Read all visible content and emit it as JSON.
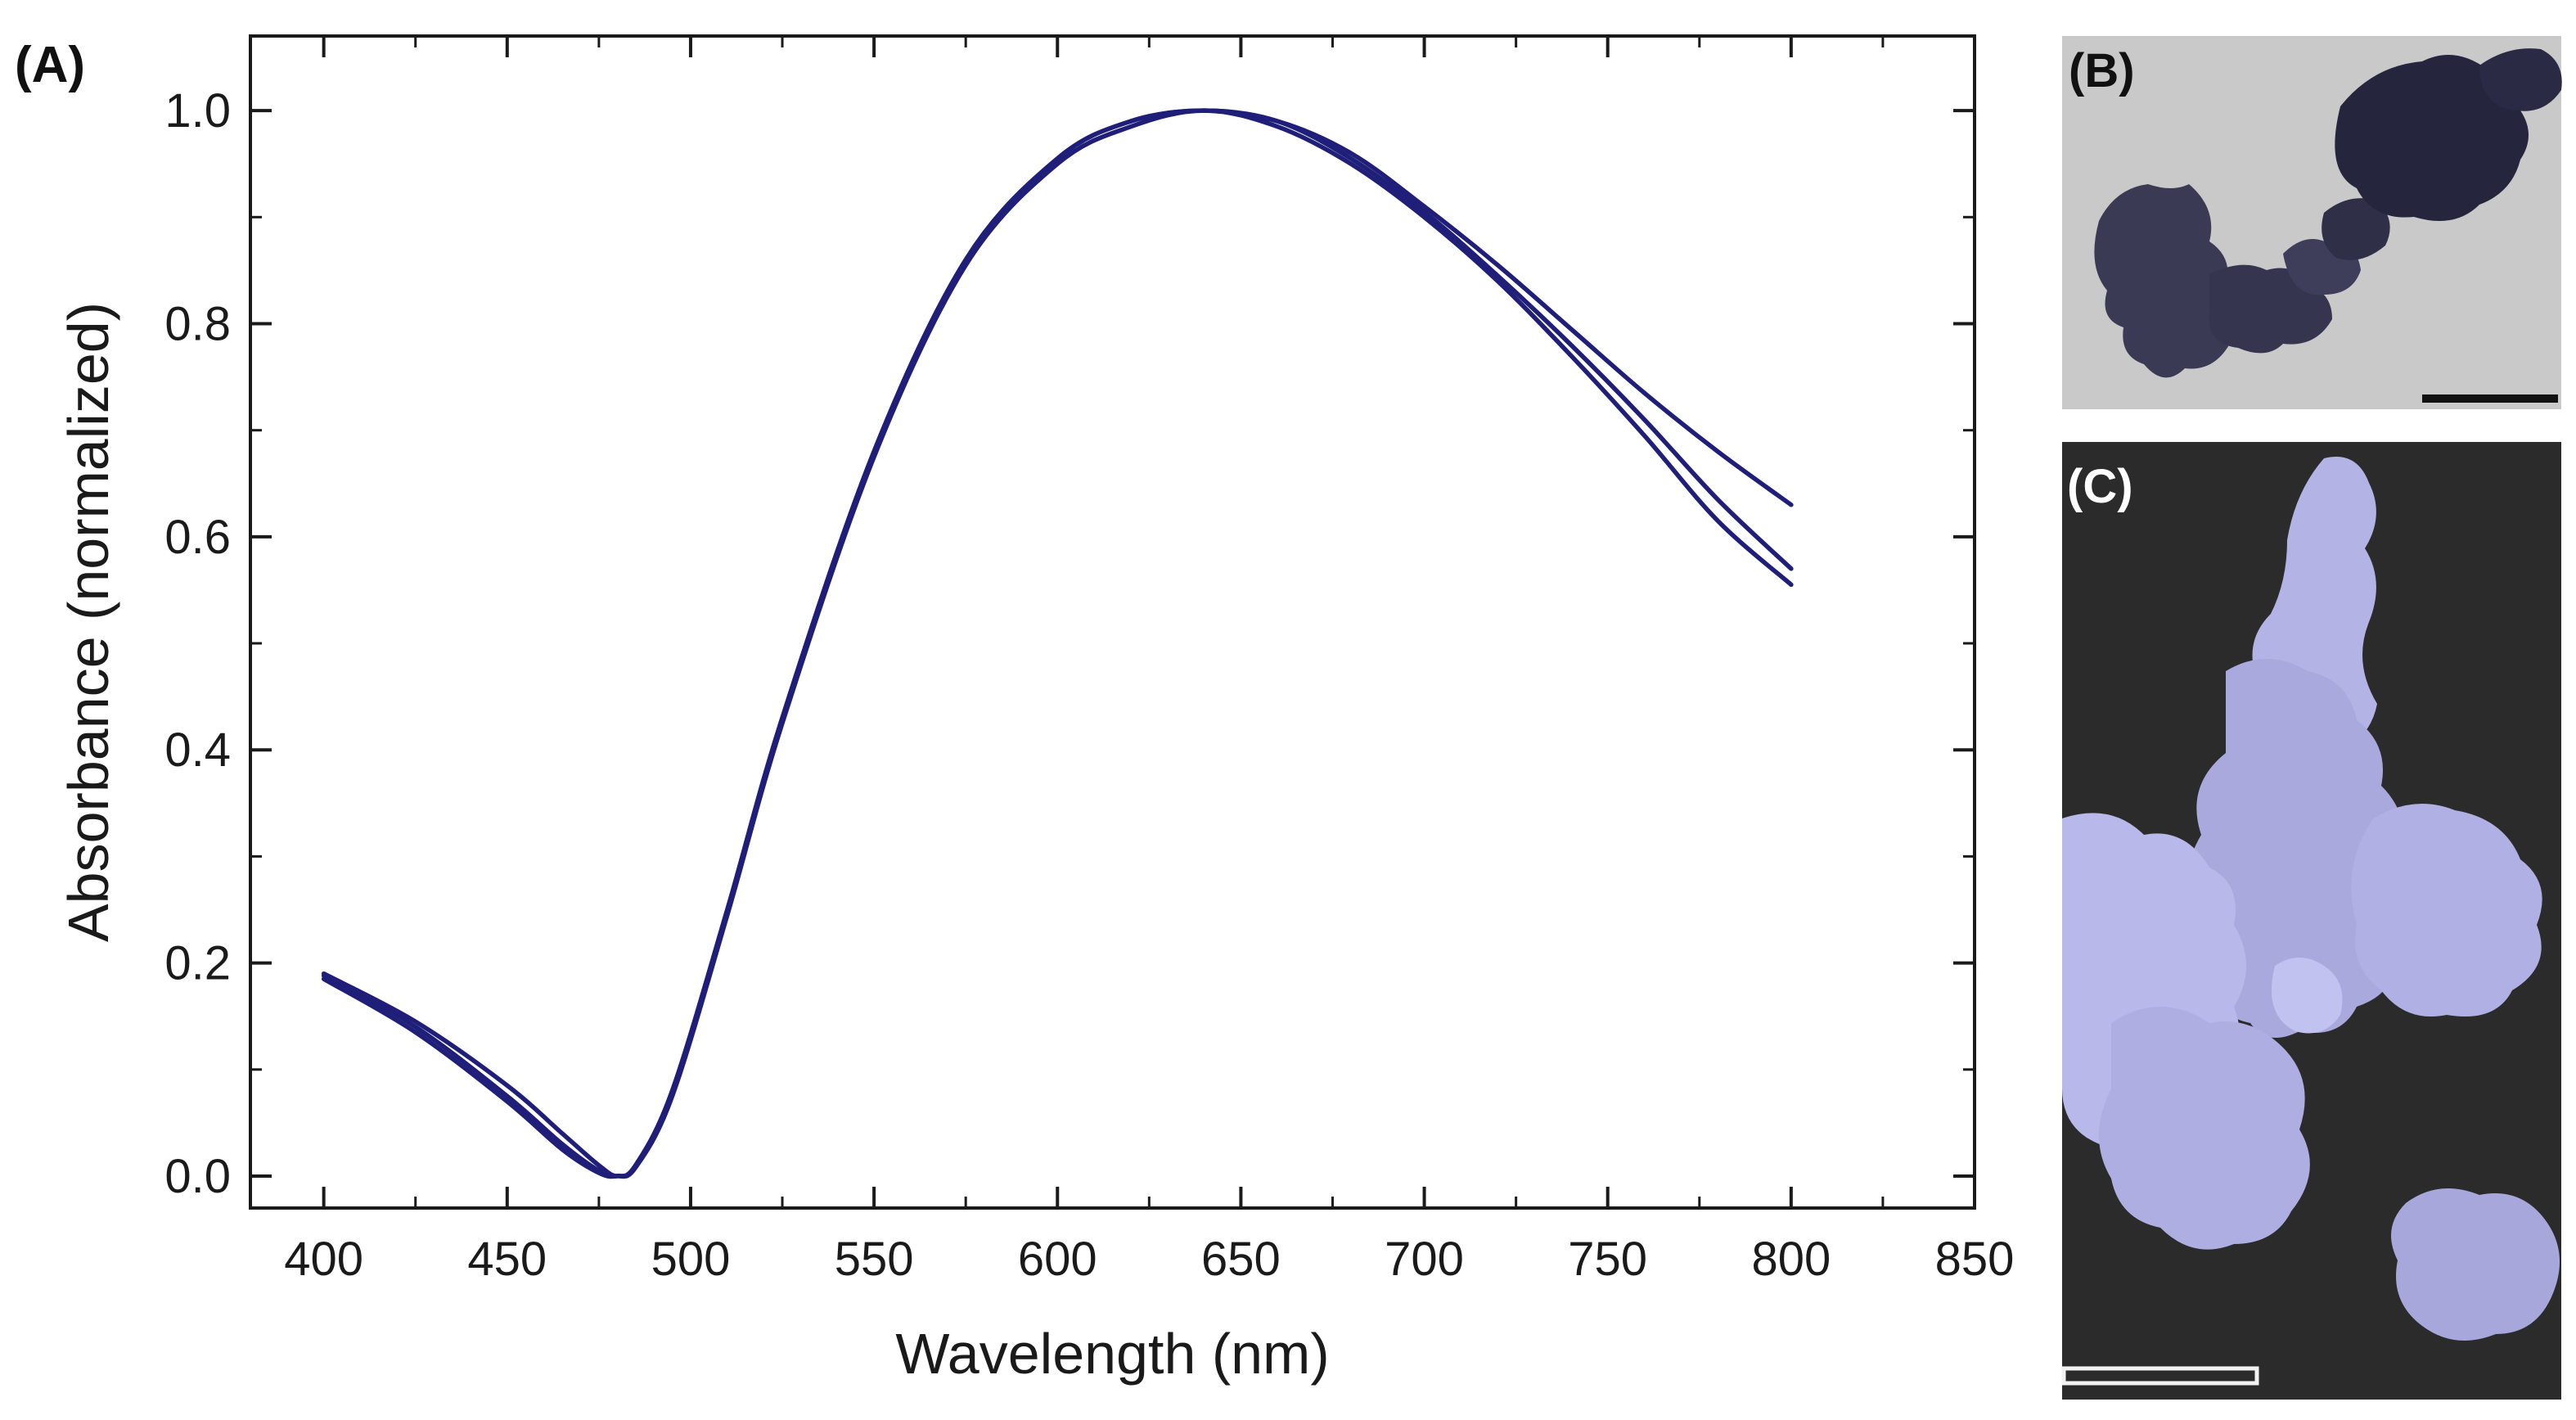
{
  "panels": {
    "a_label": "(A)",
    "b_label": "(B)",
    "c_label": "(C)"
  },
  "colors": {
    "series": "#1f1f7a",
    "axis": "#1a1a1a",
    "tem_background": "#c9c9c9",
    "tem_particle": "#3a3a55",
    "sem_background": "#2b2b2b",
    "sem_particle": "#b3b3e6"
  },
  "chart_data": {
    "type": "line",
    "title": "",
    "xlabel": "Wavelength (nm)",
    "ylabel": "Absorbance (normalized)",
    "xlim": [
      380,
      850
    ],
    "ylim": [
      -0.03,
      1.07
    ],
    "xticks": [
      400,
      450,
      500,
      550,
      600,
      650,
      700,
      750,
      800,
      850
    ],
    "yticks": [
      0.0,
      0.2,
      0.4,
      0.6,
      0.8,
      1.0
    ],
    "xtick_labels": [
      "400",
      "450",
      "500",
      "550",
      "600",
      "650",
      "700",
      "750",
      "800",
      "850"
    ],
    "ytick_labels": [
      "0.0",
      "0.2",
      "0.4",
      "0.6",
      "0.8",
      "1.0"
    ],
    "grid": false,
    "legend": "none",
    "x": [
      400,
      425,
      450,
      465,
      475,
      480,
      485,
      495,
      510,
      525,
      550,
      575,
      600,
      620,
      640,
      660,
      680,
      700,
      720,
      740,
      760,
      780,
      800
    ],
    "series": [
      {
        "values": [
          0.19,
          0.145,
          0.085,
          0.04,
          0.01,
          0.0,
          0.01,
          0.08,
          0.25,
          0.43,
          0.68,
          0.86,
          0.955,
          0.99,
          1.0,
          0.99,
          0.96,
          0.91,
          0.855,
          0.795,
          0.735,
          0.68,
          0.63
        ]
      },
      {
        "values": [
          0.188,
          0.14,
          0.075,
          0.03,
          0.005,
          0.0,
          0.01,
          0.08,
          0.25,
          0.43,
          0.68,
          0.86,
          0.955,
          0.99,
          1.0,
          0.99,
          0.955,
          0.905,
          0.845,
          0.78,
          0.71,
          0.635,
          0.57
        ]
      },
      {
        "values": [
          0.185,
          0.135,
          0.07,
          0.025,
          0.003,
          0.0,
          0.008,
          0.075,
          0.245,
          0.425,
          0.675,
          0.855,
          0.95,
          0.985,
          1.0,
          0.985,
          0.95,
          0.9,
          0.84,
          0.77,
          0.695,
          0.615,
          0.555
        ]
      }
    ]
  }
}
